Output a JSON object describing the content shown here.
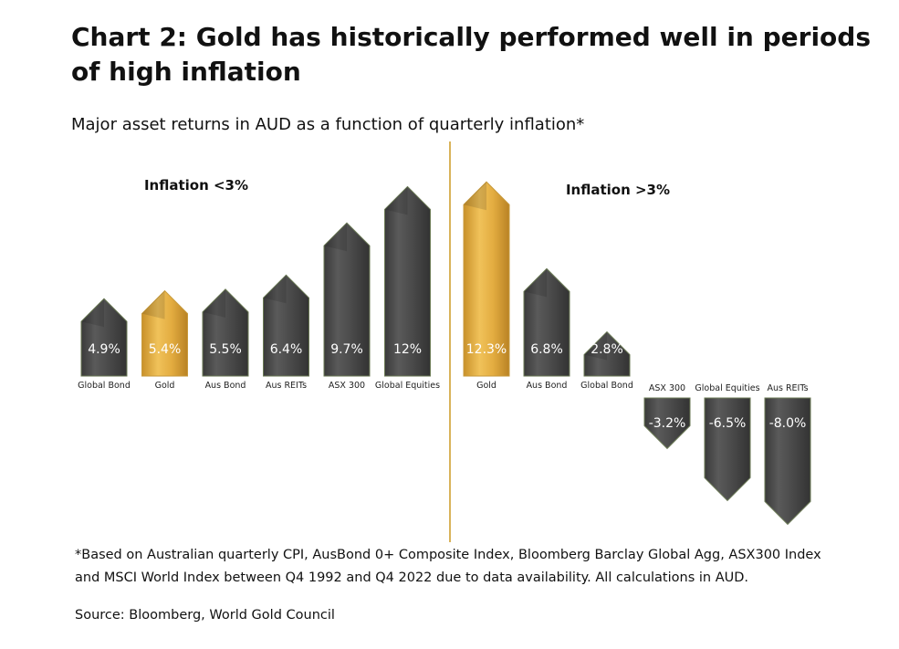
{
  "title": "Chart 2: Gold has historically performed well in periods of high inflation",
  "subtitle": "Major asset returns in AUD as a function of quarterly inflation*",
  "footnote": "*Based on Australian quarterly CPI, AusBond 0+ Composite Index, Bloomberg Barclay Global Agg, ASX300 Index and MSCI World Index between Q4 1992 and Q4 2022 due to data availability. All calculations in AUD.",
  "source": "Source: Bloomberg, World Gold Council",
  "colors": {
    "gold": "#e0aa3e",
    "dark": "#4a4a4a",
    "divider": "#d9b35a"
  },
  "chart_data": [
    {
      "type": "bar",
      "title": "Inflation <3%",
      "categories": [
        "Global Bond",
        "Gold",
        "Aus Bond",
        "Aus REITs",
        "ASX 300",
        "Global Equities"
      ],
      "values": [
        4.9,
        5.4,
        5.5,
        6.4,
        9.7,
        12
      ],
      "labels": [
        "4.9%",
        "5.4%",
        "5.5%",
        "6.4%",
        "9.7%",
        "12%"
      ],
      "highlight": [
        false,
        true,
        false,
        false,
        false,
        false
      ],
      "unit": "%"
    },
    {
      "type": "bar",
      "title": "Inflation >3%",
      "categories": [
        "Gold",
        "Aus Bond",
        "Global Bond",
        "ASX 300",
        "Global Equities",
        "Aus REITs"
      ],
      "values": [
        12.3,
        6.8,
        2.8,
        -3.2,
        -6.5,
        -8.0
      ],
      "labels": [
        "12.3%",
        "6.8%",
        "2.8%",
        "-3.2%",
        "-6.5%",
        "-8.0%"
      ],
      "highlight": [
        true,
        false,
        false,
        false,
        false,
        false
      ],
      "unit": "%"
    }
  ]
}
